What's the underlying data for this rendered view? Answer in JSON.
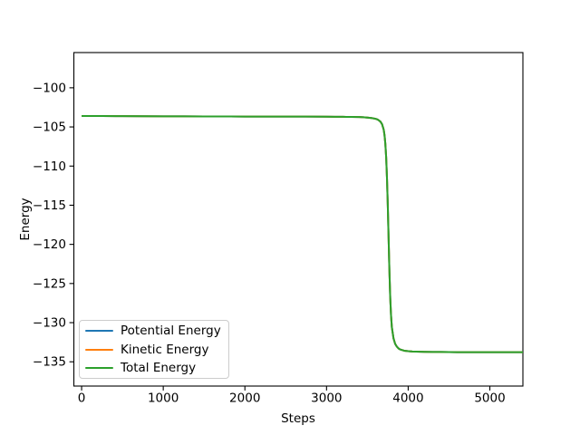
{
  "figure": {
    "background_color": "#ffffff",
    "frame_color": "#000000",
    "text_color": "#000000"
  },
  "chart_data": {
    "type": "line",
    "title": "",
    "xlabel": "Steps",
    "ylabel": "Energy",
    "xlim": [
      -95,
      5405
    ],
    "ylim": [
      -138.1,
      -95.5
    ],
    "grid": false,
    "xticks": {
      "values": [
        0,
        1000,
        2000,
        3000,
        4000,
        5000
      ],
      "labels": [
        "0",
        "1000",
        "2000",
        "3000",
        "4000",
        "5000"
      ]
    },
    "yticks": {
      "values": [
        -100,
        -105,
        -110,
        -115,
        -120,
        -125,
        -130,
        -135
      ],
      "labels": [
        "−100",
        "−105",
        "−110",
        "−115",
        "−120",
        "−125",
        "−130",
        "−135"
      ]
    },
    "x": [
      0,
      250,
      500,
      750,
      1000,
      1250,
      1500,
      1750,
      2000,
      2250,
      2500,
      2750,
      3000,
      3100,
      3200,
      3300,
      3400,
      3450,
      3500,
      3550,
      3600,
      3630,
      3660,
      3680,
      3700,
      3710,
      3720,
      3730,
      3740,
      3750,
      3760,
      3770,
      3780,
      3790,
      3800,
      3820,
      3840,
      3860,
      3880,
      3900,
      3950,
      4000,
      4050,
      4100,
      4200,
      4300,
      4400,
      4600,
      4800,
      5000,
      5200,
      5405
    ],
    "series": [
      {
        "name": "Potential Energy",
        "color": "#1f77b4",
        "values": [
          -103.6,
          -103.61,
          -103.62,
          -103.63,
          -103.64,
          -103.65,
          -103.66,
          -103.66,
          -103.67,
          -103.67,
          -103.68,
          -103.68,
          -103.69,
          -103.7,
          -103.71,
          -103.72,
          -103.74,
          -103.76,
          -103.8,
          -103.86,
          -103.96,
          -104.08,
          -104.32,
          -104.65,
          -105.35,
          -106.05,
          -107.15,
          -108.85,
          -111.5,
          -115.0,
          -119.2,
          -123.4,
          -126.8,
          -129.1,
          -130.6,
          -132.0,
          -132.7,
          -133.05,
          -133.28,
          -133.42,
          -133.58,
          -133.64,
          -133.68,
          -133.7,
          -133.73,
          -133.74,
          -133.75,
          -133.77,
          -133.78,
          -133.78,
          -133.78,
          -133.78
        ]
      },
      {
        "name": "Kinetic Energy",
        "color": "#ff7f0e",
        "values": [
          -103.6,
          -103.61,
          -103.62,
          -103.63,
          -103.64,
          -103.65,
          -103.66,
          -103.66,
          -103.67,
          -103.67,
          -103.68,
          -103.68,
          -103.69,
          -103.7,
          -103.71,
          -103.72,
          -103.74,
          -103.76,
          -103.8,
          -103.86,
          -103.96,
          -104.08,
          -104.32,
          -104.65,
          -105.35,
          -106.05,
          -107.15,
          -108.85,
          -111.5,
          -115.0,
          -119.2,
          -123.4,
          -126.8,
          -129.1,
          -130.6,
          -132.0,
          -132.7,
          -133.05,
          -133.28,
          -133.42,
          -133.58,
          -133.64,
          -133.68,
          -133.7,
          -133.73,
          -133.74,
          -133.75,
          -133.77,
          -133.78,
          -133.78,
          -133.78,
          -133.78
        ]
      },
      {
        "name": "Total Energy",
        "color": "#2ca02c",
        "values": [
          -103.6,
          -103.61,
          -103.62,
          -103.63,
          -103.64,
          -103.65,
          -103.66,
          -103.66,
          -103.67,
          -103.67,
          -103.68,
          -103.68,
          -103.69,
          -103.7,
          -103.71,
          -103.72,
          -103.74,
          -103.76,
          -103.8,
          -103.86,
          -103.96,
          -104.08,
          -104.32,
          -104.65,
          -105.35,
          -106.05,
          -107.15,
          -108.85,
          -111.5,
          -115.0,
          -119.2,
          -123.4,
          -126.8,
          -129.1,
          -130.6,
          -132.0,
          -132.7,
          -133.05,
          -133.28,
          -133.42,
          -133.58,
          -133.64,
          -133.68,
          -133.7,
          -133.73,
          -133.74,
          -133.75,
          -133.77,
          -133.78,
          -133.78,
          -133.78,
          -133.78
        ]
      }
    ],
    "legend": {
      "position": "lower-left",
      "frame": true,
      "border_color": "#cccccc",
      "background_color": "#ffffff"
    }
  }
}
